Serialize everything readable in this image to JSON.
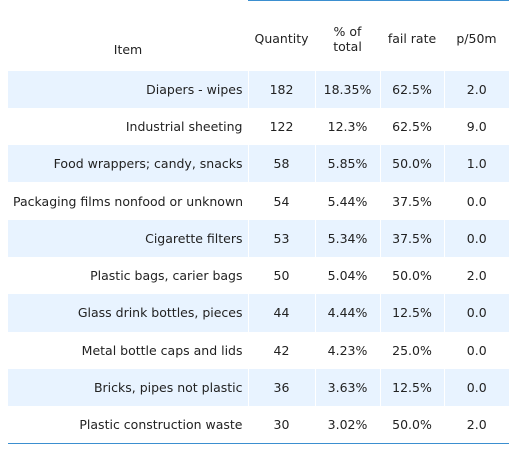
{
  "chart_data": {
    "type": "table",
    "columns": [
      "Item",
      "Quantity",
      "% of total",
      "fail rate",
      "p/50m"
    ],
    "rows": [
      [
        "Diapers - wipes",
        "182",
        "18.35%",
        "62.5%",
        "2.0"
      ],
      [
        "Industrial sheeting",
        "122",
        "12.3%",
        "62.5%",
        "9.0"
      ],
      [
        "Food wrappers; candy, snacks",
        "58",
        "5.85%",
        "50.0%",
        "1.0"
      ],
      [
        "Packaging films nonfood or unknown",
        "54",
        "5.44%",
        "37.5%",
        "0.0"
      ],
      [
        "Cigarette filters",
        "53",
        "5.34%",
        "37.5%",
        "0.0"
      ],
      [
        "Plastic bags, carier bags",
        "50",
        "5.04%",
        "50.0%",
        "2.0"
      ],
      [
        "Glass drink bottles, pieces",
        "44",
        "4.44%",
        "12.5%",
        "0.0"
      ],
      [
        "Metal bottle caps and lids",
        "42",
        "4.23%",
        "25.0%",
        "0.0"
      ],
      [
        "Bricks, pipes not plastic",
        "36",
        "3.63%",
        "12.5%",
        "0.0"
      ],
      [
        "Plastic construction waste",
        "30",
        "3.02%",
        "50.0%",
        "2.0"
      ]
    ],
    "row_shading": "#e8f3ff",
    "rule_color": "#3b8fd0"
  }
}
